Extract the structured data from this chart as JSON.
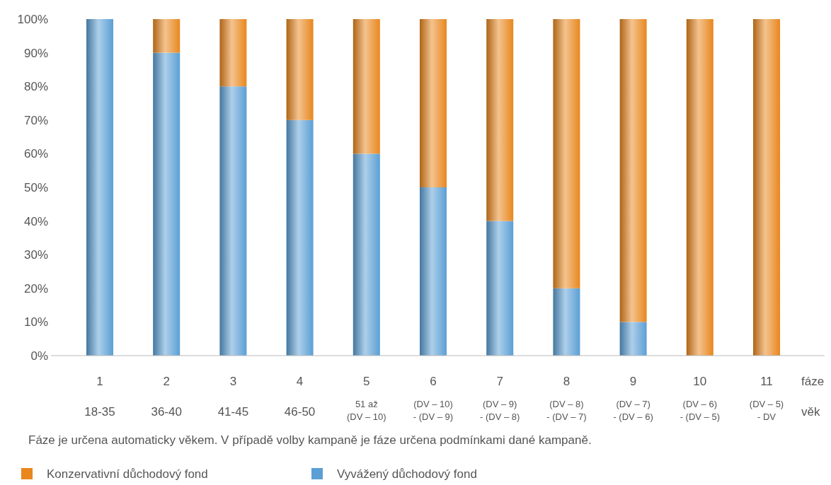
{
  "chart_data": {
    "type": "bar",
    "stacked": true,
    "categories": [
      "1\n18-35",
      "2\n36-40",
      "3\n41-45",
      "4\n46-50",
      "5\n51 až\n(DV – 10)",
      "6\n(DV – 10)\n- (DV – 9)",
      "7\n(DV – 9)\n- (DV – 8)",
      "8\n(DV – 8)\n- (DV – 7)",
      "9\n(DV – 7)\n- (DV – 6)",
      "10\n(DV – 6)\n- (DV – 5)",
      "11\n(DV – 5)\n- DV"
    ],
    "series": [
      {
        "name": "Vyvážený důchodový fond",
        "color": "#5b9fd4",
        "values": [
          100,
          90,
          80,
          70,
          60,
          50,
          40,
          20,
          10,
          0,
          0
        ]
      },
      {
        "name": "Konzervativní důchodový fond",
        "color": "#e8871e",
        "values": [
          0,
          10,
          20,
          30,
          40,
          50,
          60,
          80,
          90,
          100,
          100
        ]
      }
    ],
    "ylim": [
      0,
      100
    ],
    "yticks": [
      {
        "value": 0,
        "label": "0%"
      },
      {
        "value": 10,
        "label": "10%"
      },
      {
        "value": 20,
        "label": "20%"
      },
      {
        "value": 30,
        "label": "30%"
      },
      {
        "value": 40,
        "label": "40%"
      },
      {
        "value": 50,
        "label": "50%"
      },
      {
        "value": 60,
        "label": "60%"
      },
      {
        "value": 70,
        "label": "70%"
      },
      {
        "value": 80,
        "label": "80%"
      },
      {
        "value": 90,
        "label": "90%"
      },
      {
        "value": 100,
        "label": "100%"
      }
    ],
    "annotations": [
      "fáze",
      "věk",
      "Fáze je určena automaticky věkem. V případě volby kampaně je fáze určena podmínkami dané kampaně."
    ],
    "legend": "bottom",
    "grid": false
  }
}
